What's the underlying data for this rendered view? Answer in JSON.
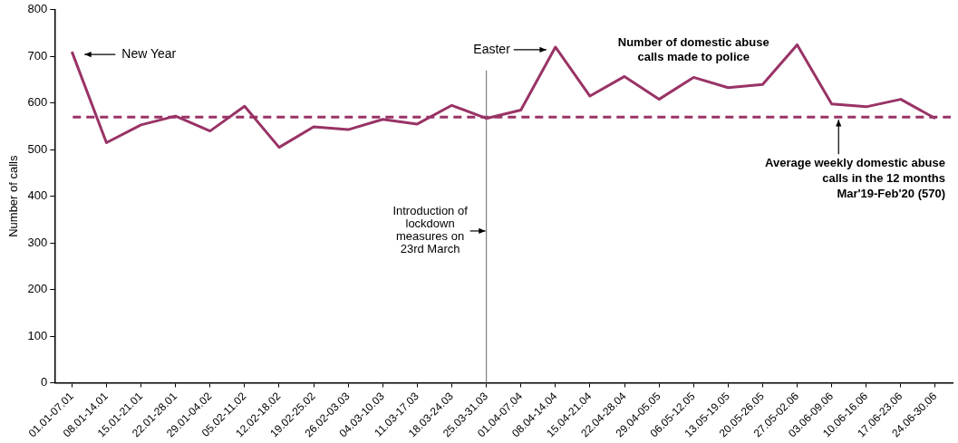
{
  "chart_data": {
    "type": "line",
    "ylabel": "Number of calls",
    "categories": [
      "01.01-07.01",
      "08.01-14.01",
      "15.01-21.01",
      "22.01-28.01",
      "29.01-04.02",
      "05.02-11.02",
      "12.02-18.02",
      "19.02-25.02",
      "26.02-03.03",
      "04.03-10.03",
      "11.03-17.03",
      "18.03-24.03",
      "25.03-31.03",
      "01.04-07.04",
      "08.04-14.04",
      "15.04-21.04",
      "22.04-28.04",
      "29.04-05.05",
      "06.05-12.05",
      "13.05-19.05",
      "20.05-26.05",
      "27.05-02.06",
      "03.06-09.06",
      "10.06-16.06",
      "17.06-23.06",
      "24.06-30.06"
    ],
    "series": [
      {
        "name": "Number of domestic abuse calls made to police",
        "color": "#993366",
        "values": [
          710,
          515,
          553,
          572,
          540,
          593,
          505,
          549,
          543,
          565,
          555,
          595,
          567,
          585,
          720,
          615,
          657,
          608,
          655,
          633,
          640,
          725,
          598,
          592,
          608,
          567
        ]
      }
    ],
    "ylim": [
      0,
      800
    ],
    "yticks": [
      0,
      100,
      200,
      300,
      400,
      500,
      600,
      700,
      800
    ],
    "grid": false,
    "legend": false,
    "marker": "none",
    "line_style": "solid",
    "ref_lines": [
      {
        "axis": "y",
        "value": 570,
        "label": "Average weekly domestic abuse calls in the 12 months Mar'19-Feb'20 (570)",
        "color": "#993366",
        "line_style": "dashed"
      },
      {
        "axis": "x",
        "value": "25.03-31.03",
        "label": "Introduction of lockdown measures on 23rd March",
        "color": "#808080",
        "line_style": "solid"
      }
    ],
    "annotations": [
      "New Year",
      "Easter"
    ]
  }
}
